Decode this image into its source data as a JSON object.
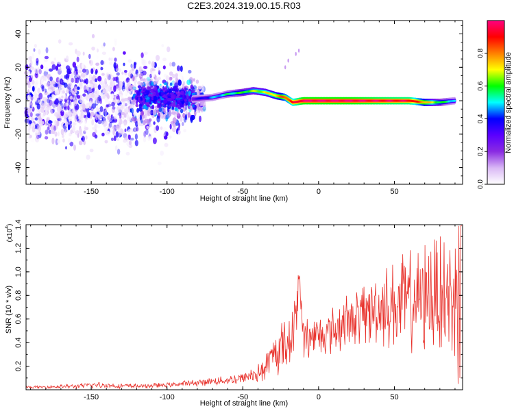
{
  "title": "C2E3.2024.319.00.15.R03",
  "chart_data": [
    {
      "type": "heatmap",
      "xlabel": "Height of straight line (km)",
      "ylabel": "Frequency (Hz)",
      "xlim": [
        -193,
        95
      ],
      "ylim": [
        -50,
        48
      ],
      "xticks": [
        -150,
        -100,
        -50,
        0,
        50
      ],
      "yticks": [
        -40,
        -20,
        0,
        20,
        40
      ],
      "colorbar": {
        "label": "Normalized spectral amplitude",
        "range": [
          0,
          1
        ],
        "ticks": [
          "0.0",
          "0.2",
          "0.4",
          "0.6",
          "0.8"
        ],
        "colormap": [
          "#ffffff",
          "#d9b8f5",
          "#8a2be2",
          "#5a00ff",
          "#0000ff",
          "#00ffff",
          "#00ff00",
          "#ffff00",
          "#ff7f00",
          "#ff0000",
          "#ff0080"
        ]
      },
      "ridge": {
        "x": [
          -83,
          -70,
          -60,
          -50,
          -43,
          -35,
          -28,
          -22,
          -17,
          -10,
          0,
          20,
          40,
          60,
          70,
          80,
          90
        ],
        "frequency": [
          1,
          2,
          4,
          5,
          6,
          5,
          3,
          2,
          -1,
          0,
          0,
          0,
          0,
          0,
          -1,
          -1,
          0
        ],
        "amplitude": [
          0.25,
          0.4,
          0.5,
          0.55,
          0.6,
          0.65,
          0.7,
          0.8,
          0.85,
          0.95,
          0.95,
          0.95,
          0.92,
          0.9,
          0.75,
          0.55,
          0.45
        ]
      },
      "noise_region": {
        "x": [
          -193,
          -85
        ],
        "frequency_spread": [
          -50,
          48
        ],
        "amplitude": [
          0.1,
          0.3
        ]
      },
      "grid": false
    },
    {
      "type": "line",
      "xlabel": "Height of straight line (km)",
      "ylabel": "SNR (10 * v/v)",
      "scale_label": "(x10",
      "scale_exponent": "4",
      "xlim": [
        -193,
        95
      ],
      "ylim": [
        0,
        1.4
      ],
      "xticks": [
        -150,
        -100,
        -50,
        0,
        50
      ],
      "yticks": [
        0.2,
        0.4,
        0.6,
        0.8,
        1.0,
        1.2,
        1.4
      ],
      "color": "#e8302a",
      "series": [
        {
          "x": [
            -193,
            -160,
            -150,
            -120,
            -100,
            -80,
            -60,
            -50,
            -40,
            -35,
            -30,
            -25,
            -20,
            -15,
            -13,
            -10,
            0,
            10,
            20,
            30,
            40,
            50,
            60,
            70,
            80,
            90,
            93,
            95
          ],
          "mean": [
            0.02,
            0.03,
            0.04,
            0.03,
            0.04,
            0.06,
            0.08,
            0.1,
            0.14,
            0.18,
            0.28,
            0.35,
            0.42,
            0.55,
            0.98,
            0.45,
            0.45,
            0.5,
            0.58,
            0.65,
            0.7,
            0.72,
            0.75,
            0.78,
            0.8,
            0.78,
            1.4,
            1.4
          ],
          "spread": [
            0.01,
            0.02,
            0.03,
            0.02,
            0.02,
            0.03,
            0.04,
            0.06,
            0.08,
            0.12,
            0.18,
            0.22,
            0.25,
            0.3,
            0.05,
            0.2,
            0.18,
            0.22,
            0.25,
            0.28,
            0.35,
            0.38,
            0.45,
            0.5,
            0.5,
            0.55,
            0.1,
            0.1
          ]
        }
      ],
      "grid": false
    }
  ]
}
